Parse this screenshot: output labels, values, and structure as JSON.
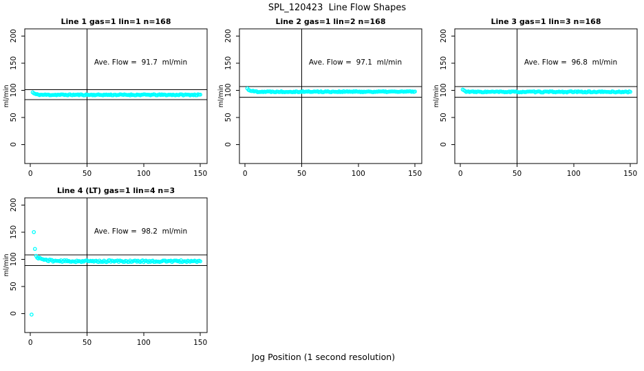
{
  "title": "SPL_120423  Line Flow Shapes",
  "xlabel": "Jog Position (1 second resolution)",
  "colors": {
    "point": "#00FFFF",
    "axis": "#000000",
    "background": "#FFFFFF"
  },
  "chart_data": [
    {
      "type": "scatter",
      "title": "Line 1 gas=1 lin=1 n=168",
      "annotation": "Ave. Flow =  91.7  ml/min",
      "avg_flow": 91.7,
      "n": 168,
      "ylabel": "ml/min",
      "xlim": [
        -5,
        156
      ],
      "ylim": [
        -35,
        213
      ],
      "xticks": [
        0,
        50,
        100,
        150
      ],
      "yticks": [
        0,
        50,
        100,
        150,
        200
      ],
      "vline": 50,
      "hlines": [
        100.9,
        82.5
      ],
      "band": {
        "x_start": 2,
        "x_end": 150,
        "start_value": 96,
        "settle_value": 91.5,
        "settle_by_x": 8,
        "noise": 1.0,
        "seed": 11
      },
      "outliers": []
    },
    {
      "type": "scatter",
      "title": "Line 2 gas=1 lin=2 n=168",
      "annotation": "Ave. Flow =  97.1  ml/min",
      "avg_flow": 97.1,
      "n": 168,
      "ylabel": "ml/min",
      "xlim": [
        -5,
        156
      ],
      "ylim": [
        -35,
        213
      ],
      "xticks": [
        0,
        50,
        100,
        150
      ],
      "yticks": [
        0,
        50,
        100,
        150,
        200
      ],
      "vline": 50,
      "hlines": [
        106.8,
        87.4
      ],
      "band": {
        "x_start": 2,
        "x_end": 150,
        "start_value": 103,
        "settle_value": 97.3,
        "settle_by_x": 10,
        "noise": 1.0,
        "seed": 22
      },
      "outliers": []
    },
    {
      "type": "scatter",
      "title": "Line 3 gas=1 lin=3 n=168",
      "annotation": "Ave. Flow =  96.8  ml/min",
      "avg_flow": 96.8,
      "n": 168,
      "ylabel": "ml/min",
      "xlim": [
        -5,
        156
      ],
      "ylim": [
        -35,
        213
      ],
      "xticks": [
        0,
        50,
        100,
        150
      ],
      "yticks": [
        0,
        50,
        100,
        150,
        200
      ],
      "vline": 50,
      "hlines": [
        106.5,
        87.1
      ],
      "band": {
        "x_start": 2,
        "x_end": 150,
        "start_value": 101,
        "settle_value": 96.9,
        "settle_by_x": 8,
        "noise": 1.0,
        "seed": 33
      },
      "outliers": []
    },
    {
      "type": "scatter",
      "title": "Line 4 (LT) gas=1 lin=4 n=3",
      "annotation": "Ave. Flow =  98.2  ml/min",
      "avg_flow": 98.2,
      "n": 3,
      "ylabel": "ml/min",
      "xlim": [
        -5,
        156
      ],
      "ylim": [
        -35,
        213
      ],
      "xticks": [
        0,
        50,
        100,
        150
      ],
      "yticks": [
        0,
        50,
        100,
        150,
        200
      ],
      "vline": 50,
      "hlines": [
        108.0,
        88.4
      ],
      "band": {
        "x_start": 5,
        "x_end": 150,
        "start_value": 105,
        "settle_value": 96.3,
        "settle_by_x": 25,
        "noise": 1.7,
        "seed": 44
      },
      "outliers": [
        [
          1,
          -2
        ],
        [
          3,
          150
        ],
        [
          4,
          119
        ]
      ]
    }
  ]
}
